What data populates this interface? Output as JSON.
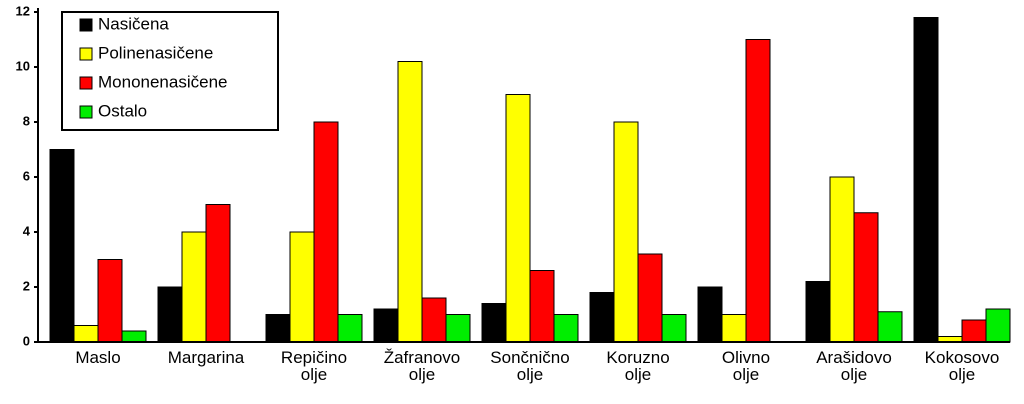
{
  "chart_data": {
    "type": "bar",
    "categories": [
      "Maslo",
      "Margarina",
      "Repičino\nolje",
      "Žafranovo\nolje",
      "Sončnično\nolje",
      "Koruzno\nolje",
      "Olivno\nolje",
      "Arašidovo\nolje",
      "Kokosovo\nolje"
    ],
    "series": [
      {
        "name": "Nasičena",
        "color": "#000000",
        "values": [
          7,
          2,
          1,
          1.2,
          1.4,
          1.8,
          2,
          2.2,
          11.8
        ]
      },
      {
        "name": "Polinenasičene",
        "color": "#ffff00",
        "values": [
          0.6,
          4,
          4,
          10.2,
          9,
          8,
          1,
          6,
          0.2
        ]
      },
      {
        "name": "Mononenasičene",
        "color": "#ff0000",
        "values": [
          3,
          5,
          8,
          1.6,
          2.6,
          3.2,
          11,
          4.7,
          0.8
        ]
      },
      {
        "name": "Ostalo",
        "color": "#00ee00",
        "values": [
          0.4,
          0,
          1,
          1,
          1,
          1,
          0,
          1.1,
          1.2
        ]
      }
    ],
    "ylim": [
      0,
      12
    ],
    "yticks": [
      0,
      2,
      4,
      6,
      8,
      10,
      12
    ],
    "grid": false,
    "legend": "upper left"
  }
}
